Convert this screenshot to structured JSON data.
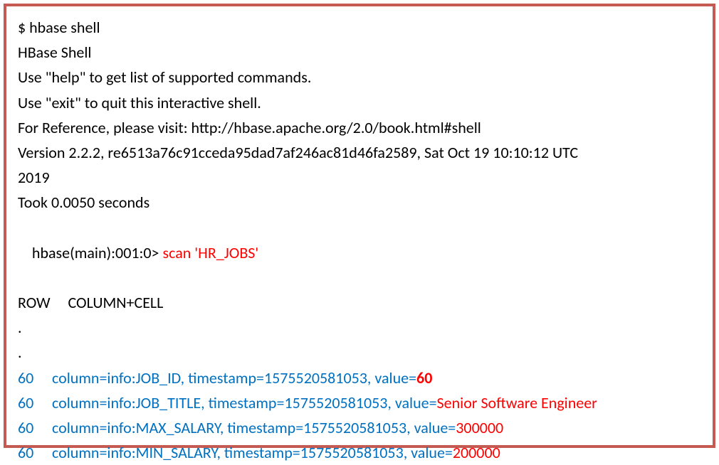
{
  "border_color": "#c45a52",
  "text_color_black": "#000000",
  "text_color_blue": "#0070c0",
  "text_color_red": "#ff0000",
  "font_size": 22,
  "shell": {
    "cmd": "$ hbase shell",
    "title": "HBase Shell",
    "help_line": "Use \"help\" to get list of supported commands.",
    "exit_line": "Use \"exit\" to quit this interactive shell.",
    "reference_line": "For Reference, please visit: http://hbase.apache.org/2.0/book.html#shell",
    "version_line": "Version 2.2.2, re6513a76c91cceda95dad7af246ac81d46fa2589, Sat Oct 19 10:10:12 UTC",
    "version_year": "2019",
    "took_line": "Took 0.0050 seconds",
    "prompt": "hbase(main):001:0> ",
    "scan_cmd": "scan 'HR_JOBS'",
    "header": "ROW     COLUMN+CELL",
    "dot": "."
  },
  "rows": [
    {
      "id": "60",
      "col": "column=info:JOB_ID, timestamp=1575520581053, value=",
      "val": "60",
      "bold": true
    },
    {
      "id": "60",
      "col": "column=info:JOB_TITLE, timestamp=1575520581053, value=",
      "val": "Senior Software Engineer",
      "bold": false
    },
    {
      "id": "60",
      "col": "column=info:MAX_SALARY, timestamp=1575520581053, value=",
      "val": "300000",
      "bold": false
    },
    {
      "id": "60",
      "col": "column=info:MIN_SALARY, timestamp=1575520581053, value=",
      "val": "200000",
      "bold": false
    }
  ]
}
